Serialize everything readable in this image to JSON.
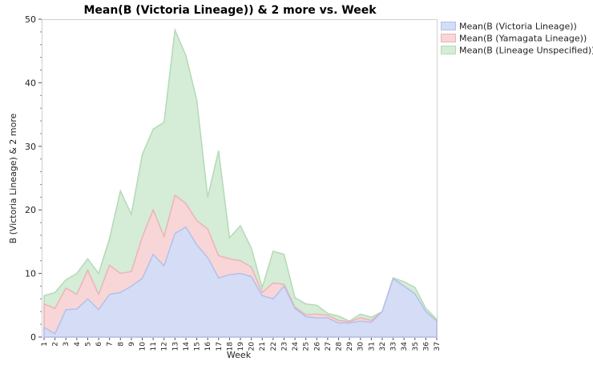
{
  "chart_data": {
    "type": "area",
    "stacked": true,
    "title": "Mean(B (Victoria Lineage)) & 2 more vs. Week",
    "xlabel": "Week",
    "ylabel": "B (Victoria Lineage) & 2 more",
    "ylim": [
      0,
      50
    ],
    "yticks": [
      0,
      10,
      20,
      30,
      40,
      50
    ],
    "x": [
      1,
      2,
      3,
      4,
      5,
      6,
      7,
      8,
      9,
      10,
      11,
      12,
      13,
      14,
      15,
      16,
      17,
      18,
      19,
      20,
      21,
      22,
      23,
      24,
      25,
      26,
      27,
      28,
      29,
      30,
      31,
      32,
      33,
      34,
      35,
      36,
      37
    ],
    "series": [
      {
        "name": "Mean(B (Victoria Lineage))",
        "fill": "#d5dcf6",
        "stroke": "#b3c0ea",
        "values": [
          1.5,
          0.5,
          4.3,
          4.4,
          6.0,
          4.3,
          6.7,
          7.0,
          8.0,
          9.2,
          13.0,
          11.2,
          16.3,
          17.3,
          14.5,
          12.5,
          9.3,
          9.8,
          10.0,
          9.5,
          6.5,
          6.0,
          8.0,
          4.5,
          3.2,
          3.0,
          3.0,
          2.2,
          2.2,
          2.5,
          2.3,
          4.0,
          9.2,
          8.0,
          6.8,
          4.0,
          2.5
        ]
      },
      {
        "name": "Mean(B (Yamagata Lineage))",
        "fill": "#f8d6d8",
        "stroke": "#eab4b8",
        "values": [
          3.7,
          4.0,
          3.4,
          2.3,
          4.5,
          2.4,
          4.6,
          3.0,
          2.3,
          6.5,
          7.0,
          4.6,
          6.0,
          3.7,
          3.8,
          4.5,
          3.5,
          2.5,
          2.0,
          1.5,
          0.5,
          2.5,
          0.3,
          0.2,
          0.3,
          0.6,
          0.4,
          0.4,
          0.2,
          0.5,
          0.3,
          0.0,
          0.0,
          0.0,
          0.0,
          0.0,
          0.0
        ]
      },
      {
        "name": "Mean(B (Lineage Unspecified))",
        "fill": "#d5ecd6",
        "stroke": "#b4dab6",
        "values": [
          1.3,
          2.5,
          1.3,
          3.3,
          1.8,
          3.3,
          4.2,
          13.0,
          9.0,
          13.0,
          12.7,
          18.0,
          26.0,
          23.3,
          19.0,
          5.0,
          16.5,
          3.3,
          5.5,
          3.0,
          0.8,
          5.0,
          4.7,
          1.5,
          1.7,
          1.4,
          0.3,
          0.7,
          0.1,
          0.6,
          0.5,
          0.0,
          0.1,
          0.7,
          1.0,
          0.5,
          0.3
        ]
      }
    ],
    "legend": "top-right"
  }
}
